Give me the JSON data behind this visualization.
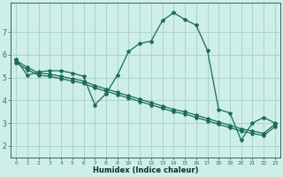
{
  "xlabel": "Humidex (Indice chaleur)",
  "x": [
    0,
    1,
    2,
    3,
    4,
    5,
    6,
    7,
    8,
    9,
    10,
    11,
    12,
    13,
    14,
    15,
    16,
    17,
    18,
    19,
    20,
    21,
    22,
    23
  ],
  "line_jagged": [
    5.8,
    5.1,
    5.25,
    5.3,
    5.3,
    5.2,
    5.05,
    3.8,
    4.3,
    5.1,
    6.15,
    6.5,
    6.6,
    7.5,
    7.85,
    7.55,
    7.3,
    6.2,
    3.6,
    3.45,
    2.25,
    3.0,
    3.25,
    3.0
  ],
  "line_diag1": [
    5.75,
    5.45,
    5.2,
    5.15,
    5.05,
    4.95,
    4.85,
    4.65,
    4.5,
    4.35,
    4.2,
    4.05,
    3.9,
    3.75,
    3.6,
    3.5,
    3.35,
    3.2,
    3.05,
    2.9,
    2.75,
    2.65,
    2.55,
    2.95
  ],
  "line_diag2": [
    5.65,
    5.35,
    5.1,
    5.05,
    4.95,
    4.85,
    4.75,
    4.55,
    4.4,
    4.25,
    4.1,
    3.95,
    3.8,
    3.65,
    3.5,
    3.4,
    3.25,
    3.1,
    2.95,
    2.8,
    2.65,
    2.55,
    2.45,
    2.85
  ],
  "color": "#1a6b5a",
  "bg_color": "#ceeee8",
  "grid_color": "#aad4cc",
  "ylim": [
    1.5,
    8.3
  ],
  "xlim": [
    -0.5,
    23.5
  ],
  "yticks": [
    2,
    3,
    4,
    5,
    6,
    7
  ],
  "xticks": [
    0,
    1,
    2,
    3,
    4,
    5,
    6,
    7,
    8,
    9,
    10,
    11,
    12,
    13,
    14,
    15,
    16,
    17,
    18,
    19,
    20,
    21,
    22,
    23
  ]
}
